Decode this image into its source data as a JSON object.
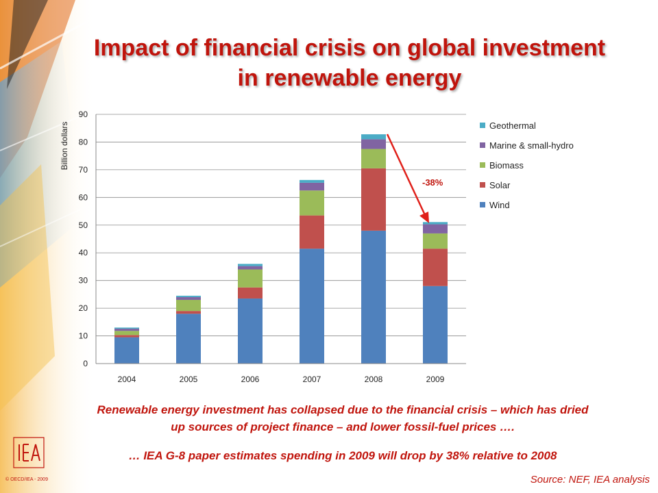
{
  "title_line1": "Impact of financial crisis on global investment",
  "title_line2": "in renewable energy",
  "chart_data": {
    "type": "bar",
    "stacked": true,
    "categories": [
      "2004",
      "2005",
      "2006",
      "2007",
      "2008",
      "2009"
    ],
    "series": [
      {
        "name": "Wind",
        "color": "#4f81bd",
        "values": [
          9.5,
          18,
          23.5,
          41.5,
          48,
          28
        ]
      },
      {
        "name": "Solar",
        "color": "#c0504d",
        "values": [
          0.8,
          1,
          4,
          12,
          22.5,
          13.5
        ]
      },
      {
        "name": "Biomass",
        "color": "#9bbb59",
        "values": [
          1.5,
          4,
          6.5,
          9,
          7,
          5.5
        ]
      },
      {
        "name": "Marine & small-hydro",
        "color": "#8064a2",
        "values": [
          0.8,
          1,
          1.2,
          2.8,
          3.5,
          3.3
        ]
      },
      {
        "name": "Geothermal",
        "color": "#4bacc6",
        "values": [
          0.4,
          0.5,
          0.8,
          1,
          1.8,
          0.8
        ]
      }
    ],
    "ylabel": "Billion dollars",
    "ylim": [
      0,
      90
    ],
    "yticks": [
      "0",
      "10",
      "20",
      "30",
      "40",
      "50",
      "60",
      "70",
      "80",
      "90"
    ],
    "grid": true,
    "legend_position": "right",
    "annotation": "-38%"
  },
  "note_line1": "Renewable energy investment has collapsed due to the financial crisis – which has dried",
  "note_line2": "up sources of project finance – and lower fossil-fuel prices ….",
  "note_line3": "… IEA G-8 paper estimates spending in 2009 will drop by 38% relative to 2008",
  "source": "Source: NEF, IEA analysis",
  "copyright": "© OECD/IEA - 2009"
}
